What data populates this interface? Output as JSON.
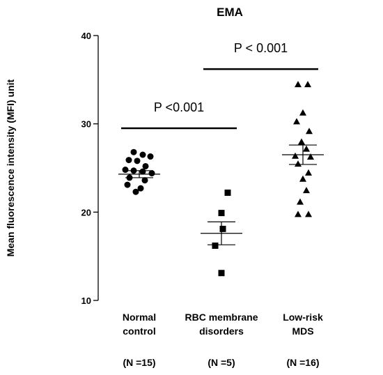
{
  "chart_data": {
    "type": "scatter",
    "title": "EMA",
    "xlabel": "",
    "ylabel": "Mean fluorescence intensity (MFI) unit",
    "ylim": [
      10,
      40
    ],
    "yticks": [
      10,
      20,
      30,
      40
    ],
    "grid": false,
    "categories": [
      {
        "lines": [
          "Normal",
          "control"
        ],
        "n_label": "(N =15)"
      },
      {
        "lines": [
          "RBC membrane",
          "disorders"
        ],
        "n_label": "(N =5)"
      },
      {
        "lines": [
          "Low-risk",
          "MDS"
        ],
        "n_label": "(N =16)"
      }
    ],
    "series": [
      {
        "category_index": 0,
        "marker": "circle",
        "points": [
          {
            "y": 26.8,
            "dx": -0.8
          },
          {
            "y": 26.5,
            "dx": 0.5
          },
          {
            "y": 26.3,
            "dx": 1.6
          },
          {
            "y": 25.9,
            "dx": -1.5
          },
          {
            "y": 25.8,
            "dx": -0.3
          },
          {
            "y": 25.2,
            "dx": 0.9
          },
          {
            "y": 24.8,
            "dx": -2.0
          },
          {
            "y": 24.7,
            "dx": -0.8
          },
          {
            "y": 24.6,
            "dx": 0.5
          },
          {
            "y": 24.4,
            "dx": 1.8
          },
          {
            "y": 23.9,
            "dx": -1.4
          },
          {
            "y": 23.6,
            "dx": 0.8
          },
          {
            "y": 23.1,
            "dx": -1.7
          },
          {
            "y": 22.7,
            "dx": 0.2
          },
          {
            "y": 22.3,
            "dx": -0.5
          }
        ],
        "mean": 24.3,
        "sem_low": 23.9,
        "sem_high": 24.7
      },
      {
        "category_index": 1,
        "marker": "square",
        "points": [
          {
            "y": 22.2,
            "dx": 0.9
          },
          {
            "y": 19.9,
            "dx": 0.0
          },
          {
            "y": 18.1,
            "dx": 0.2
          },
          {
            "y": 16.2,
            "dx": -0.9
          },
          {
            "y": 13.1,
            "dx": 0.0
          }
        ],
        "mean": 17.6,
        "sem_low": 16.3,
        "sem_high": 18.9
      },
      {
        "category_index": 2,
        "marker": "triangle",
        "points": [
          {
            "y": 34.5,
            "dx": -0.7
          },
          {
            "y": 34.5,
            "dx": 0.7
          },
          {
            "y": 31.3,
            "dx": 0.0
          },
          {
            "y": 30.3,
            "dx": -0.9
          },
          {
            "y": 29.2,
            "dx": 0.9
          },
          {
            "y": 28.0,
            "dx": -0.2
          },
          {
            "y": 27.2,
            "dx": 0.5
          },
          {
            "y": 26.4,
            "dx": -1.1
          },
          {
            "y": 26.3,
            "dx": 1.1
          },
          {
            "y": 25.5,
            "dx": -0.7
          },
          {
            "y": 24.5,
            "dx": 0.8
          },
          {
            "y": 23.8,
            "dx": 0.0
          },
          {
            "y": 22.5,
            "dx": 0.5
          },
          {
            "y": 21.2,
            "dx": -0.4
          },
          {
            "y": 19.8,
            "dx": -0.7
          },
          {
            "y": 19.8,
            "dx": 0.8
          }
        ],
        "mean": 26.5,
        "sem_low": 25.4,
        "sem_high": 27.6
      }
    ],
    "annotations": [
      {
        "text": "P <0.001",
        "from": 0,
        "to": 1,
        "y": 29.5
      },
      {
        "text": "P < 0.001",
        "from": 1,
        "to": 2,
        "y": 36.2
      }
    ]
  }
}
